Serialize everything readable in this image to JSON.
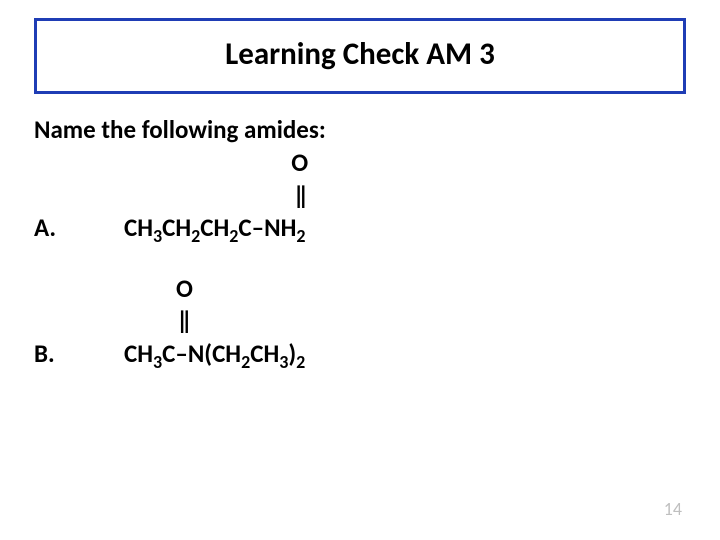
{
  "style": {
    "border_color": "#1f3db5",
    "title_fontsize": 31,
    "body_fontsize": 25,
    "pagenum_fontsize": 18,
    "text_color": "#000000",
    "pagenum_color": "#bfbfbf",
    "background": "#ffffff"
  },
  "title": "Learning Check AM 3",
  "prompt": "Name the following amides:",
  "items": [
    {
      "label": "A.",
      "oxy_indent_ch": 13.2,
      "dbl_indent_ch": 13.5,
      "oxygen": "O",
      "dbond": "‖",
      "parts": [
        "CH",
        "3",
        "CH",
        "2",
        "CH",
        "2",
        "C–NH",
        "2"
      ]
    },
    {
      "label": "B.",
      "oxy_indent_ch": 4.1,
      "dbl_indent_ch": 4.3,
      "oxygen": "O",
      "dbond": "‖",
      "parts": [
        "CH",
        "3",
        "C–N(CH",
        "2",
        "CH",
        "3",
        ")",
        "2"
      ]
    }
  ],
  "page_number": "14"
}
